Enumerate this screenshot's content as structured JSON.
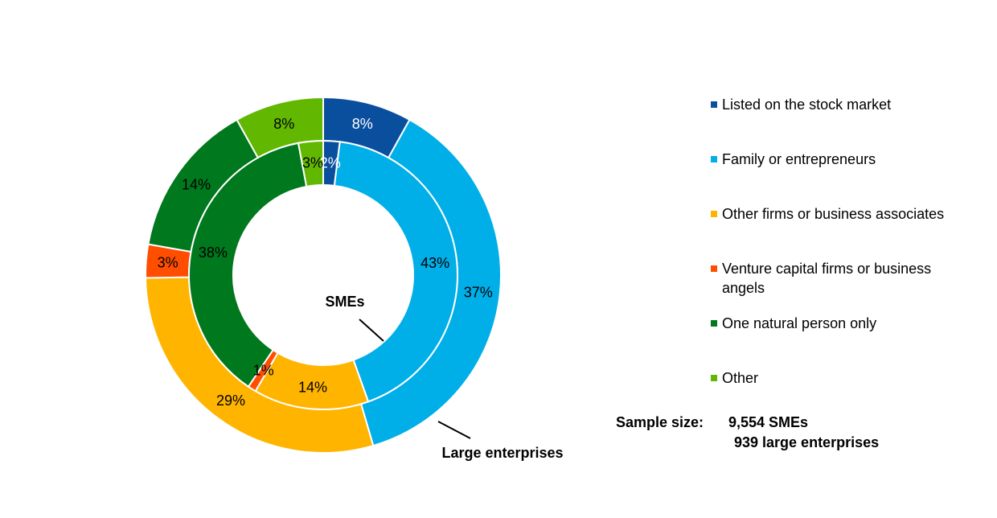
{
  "chart_data": {
    "type": "donut",
    "categories": [
      "Listed on the stock market",
      "Family or entrepreneurs",
      "Other firms or business associates",
      "Venture capital firms or business angels",
      "One natural person only",
      "Other"
    ],
    "colors": [
      "#0a4f9e",
      "#00aee8",
      "#ffb400",
      "#ff4e00",
      "#00781e",
      "#62b800"
    ],
    "series": [
      {
        "name": "SMEs",
        "ring": "inner",
        "values": [
          2,
          43,
          14,
          1,
          38,
          3
        ],
        "labels": [
          "2%",
          "43%",
          "14%",
          "1%",
          "38%",
          "3%"
        ]
      },
      {
        "name": "Large enterprises",
        "ring": "outer",
        "values": [
          8,
          37,
          29,
          3,
          14,
          8
        ],
        "labels": [
          "8%",
          "37%",
          "29%",
          "3%",
          "14%",
          "8%"
        ]
      }
    ],
    "legend_position": "right"
  },
  "legend": [
    "Listed on the stock market",
    "Family or entrepreneurs",
    "Other firms or business associates",
    "Venture capital firms or business angels",
    "One natural person only",
    "Other"
  ],
  "sample_size": {
    "label": "Sample size:",
    "line1": "9,554 SMEs",
    "line2": "939 large enterprises"
  }
}
